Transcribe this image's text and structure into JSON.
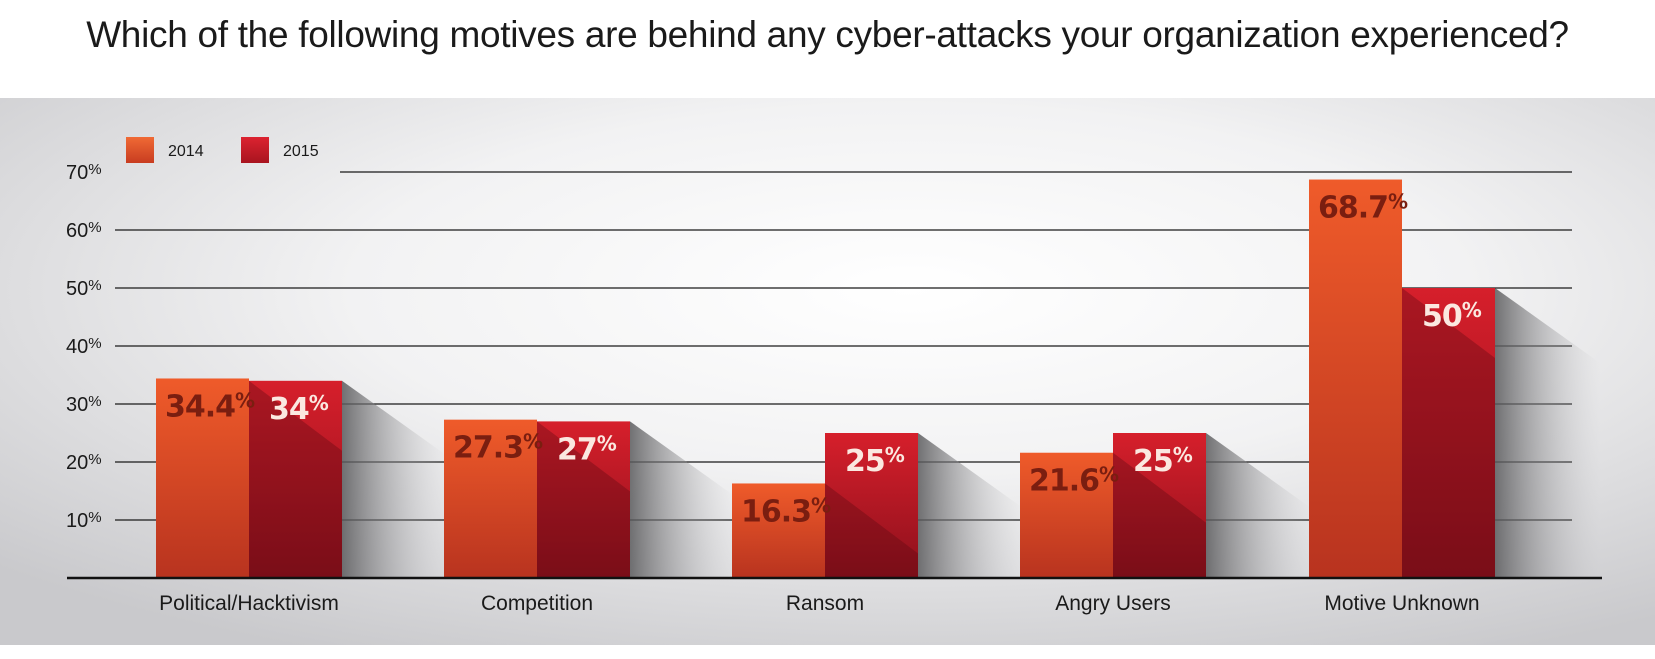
{
  "title": "Which of the following motives are behind any cyber-attacks your organization experienced?",
  "colors": {
    "series_2014_top": "#ee5a2b",
    "series_2014_bottom": "#b4301f",
    "series_2015_top": "#d8202a",
    "series_2015_bottom": "#8a0f1c",
    "label_2014": "#7a1e10",
    "label_2015": "#fbe8e0",
    "panel_bg": "#d6d6d8"
  },
  "chart_data": {
    "type": "bar",
    "title": "Which of the following motives are behind any cyber-attacks your organization experienced?",
    "categories": [
      "Political/Hacktivism",
      "Competition",
      "Ransom",
      "Angry Users",
      "Motive Unknown"
    ],
    "series": [
      {
        "name": "2014",
        "values": [
          34.4,
          27.3,
          16.3,
          21.6,
          68.7
        ],
        "labels": [
          "34.4%",
          "27.3%",
          "16.3%",
          "21.6%",
          "68.7%"
        ]
      },
      {
        "name": "2015",
        "values": [
          34,
          27,
          25,
          25,
          50
        ],
        "labels": [
          "34%",
          "27%",
          "25%",
          "25%",
          "50%"
        ]
      }
    ],
    "yticks": [
      10,
      20,
      30,
      40,
      50,
      60,
      70
    ],
    "ytick_labels": [
      "10%",
      "20%",
      "30%",
      "40%",
      "50%",
      "60%",
      "70%"
    ],
    "ylim": [
      0,
      70
    ],
    "xlabel": "",
    "ylabel": "",
    "grid": true,
    "legend_position": "top-left"
  }
}
